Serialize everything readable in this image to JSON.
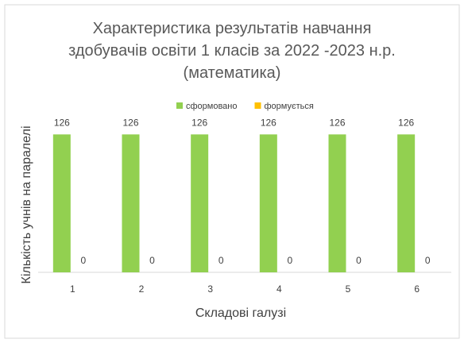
{
  "chart_data": {
    "type": "bar",
    "title": "Характеристика результатів навчання здобувачів освіти 1 класів за 2022 -2023 н.р. (математика)",
    "x_label": "Складові галузі",
    "y_label": "Кількість учнів на паралелі",
    "categories": [
      "1",
      "2",
      "3",
      "4",
      "5",
      "6"
    ],
    "series": [
      {
        "name": "сформовано",
        "color": "#92d050",
        "values": [
          126,
          126,
          126,
          126,
          126,
          126
        ]
      },
      {
        "name": "формується",
        "color": "#ffc000",
        "values": [
          0,
          0,
          0,
          0,
          0,
          0
        ]
      }
    ],
    "ylim": [
      0,
      140
    ],
    "legend": "top"
  }
}
